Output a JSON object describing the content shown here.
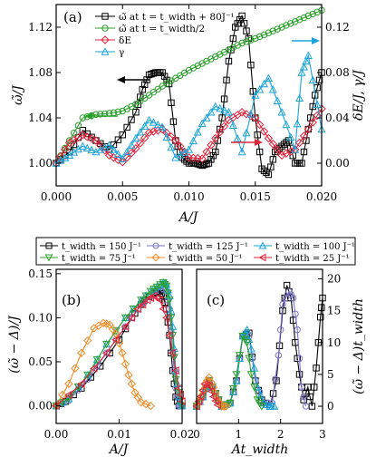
{
  "chart_data": [
    {
      "panel": "(a)",
      "type": "line",
      "xlabel": "A/J",
      "ylabel_left": "ω̃/J",
      "ylabel_right": "δE/J, γ/J",
      "xlim": [
        0,
        0.02
      ],
      "ylim_left": [
        0.98,
        1.14
      ],
      "ylim_right": [
        -0.02,
        0.14
      ],
      "x_ticks": [
        "0.000",
        "0.005",
        "0.010",
        "0.015",
        "0.020"
      ],
      "y_ticks_left": [
        "1.00",
        "1.04",
        "1.08",
        "1.12"
      ],
      "y_ticks_right": [
        "0.00",
        "0.04",
        "0.08",
        "0.12"
      ],
      "legend_position": "top-left",
      "series": [
        {
          "name": "ω̃ at t = t_width + 80J⁻¹",
          "color": "#000000",
          "marker": "square",
          "axis": "left",
          "x": [
            0,
            0.001,
            0.002,
            0.003,
            0.004,
            0.005,
            0.006,
            0.0065,
            0.007,
            0.0075,
            0.008,
            0.0085,
            0.009,
            0.0095,
            0.01,
            0.0105,
            0.011,
            0.0115,
            0.012,
            0.0125,
            0.013,
            0.0135,
            0.014,
            0.0145,
            0.015,
            0.0155,
            0.016,
            0.0165,
            0.017,
            0.0175,
            0.018,
            0.0185,
            0.019,
            0.0195,
            0.02
          ],
          "y": [
            1.0,
            1.01,
            1.029,
            1.02,
            1.012,
            1.025,
            1.045,
            1.065,
            1.078,
            1.08,
            1.08,
            1.07,
            1.02,
            1.005,
            1.0,
            1.0,
            0.998,
            1.0,
            1.01,
            1.04,
            1.09,
            1.12,
            1.13,
            1.11,
            1.04,
            0.995,
            0.99,
            1.01,
            1.015,
            1.02,
            1.0,
            1.0,
            1.03,
            1.06,
            1.08
          ]
        },
        {
          "name": "ω̃ at t = t_width/2",
          "color": "#2ca02c",
          "marker": "circle",
          "axis": "left",
          "x": [
            0,
            0.001,
            0.002,
            0.003,
            0.004,
            0.005,
            0.006,
            0.007,
            0.008,
            0.009,
            0.01,
            0.011,
            0.012,
            0.013,
            0.014,
            0.015,
            0.016,
            0.017,
            0.018,
            0.019,
            0.02
          ],
          "y": [
            1.0,
            1.02,
            1.04,
            1.043,
            1.044,
            1.046,
            1.052,
            1.06,
            1.068,
            1.075,
            1.082,
            1.088,
            1.094,
            1.1,
            1.106,
            1.11,
            1.115,
            1.12,
            1.125,
            1.13,
            1.135
          ]
        },
        {
          "name": "δE",
          "color": "#e0243c",
          "marker": "diamond",
          "axis": "right",
          "x": [
            0,
            0.001,
            0.002,
            0.003,
            0.004,
            0.005,
            0.006,
            0.007,
            0.008,
            0.009,
            0.01,
            0.011,
            0.012,
            0.013,
            0.014,
            0.015,
            0.016,
            0.017,
            0.018,
            0.019,
            0.02
          ],
          "y": [
            0.0,
            0.018,
            0.025,
            0.02,
            0.007,
            0.001,
            0.013,
            0.027,
            0.03,
            0.02,
            0.005,
            0.004,
            0.022,
            0.038,
            0.045,
            0.04,
            0.022,
            0.007,
            0.012,
            0.03,
            0.048
          ]
        },
        {
          "name": "γ",
          "color": "#1aa3d9",
          "marker": "triangle",
          "axis": "right",
          "x": [
            0,
            0.001,
            0.002,
            0.003,
            0.004,
            0.005,
            0.006,
            0.007,
            0.008,
            0.009,
            0.01,
            0.011,
            0.012,
            0.013,
            0.014,
            0.015,
            0.016,
            0.017,
            0.018,
            0.0185,
            0.019,
            0.02
          ],
          "y": [
            0.0,
            0.007,
            0.015,
            0.01,
            0.016,
            0.004,
            0.022,
            0.038,
            0.032,
            0.005,
            0.012,
            0.035,
            0.05,
            0.045,
            0.01,
            0.06,
            0.075,
            0.045,
            0.012,
            0.08,
            0.095,
            0.03
          ]
        }
      ],
      "annotations": [
        "(a)"
      ]
    },
    {
      "legend": [
        {
          "name": "t_width = 150 J⁻¹",
          "color": "#000000",
          "marker": "square"
        },
        {
          "name": "t_width = 125 J⁻¹",
          "color": "#7b73c9",
          "marker": "circle"
        },
        {
          "name": "t_width = 100 J⁻¹",
          "color": "#1aa3d9",
          "marker": "triangle"
        },
        {
          "name": "t_width =   75 J⁻¹",
          "color": "#2ca02c",
          "marker": "tri-down"
        },
        {
          "name": "t_width =   50 J⁻¹",
          "color": "#f08a24",
          "marker": "diamond"
        },
        {
          "name": "t_width =   25 J⁻¹",
          "color": "#e0243c",
          "marker": "tri-left"
        }
      ]
    },
    {
      "panel": "(b)",
      "type": "line",
      "xlabel": "A/J",
      "ylabel": "(ω̃ − Δ)/J",
      "xlim": [
        0,
        0.02
      ],
      "ylim": [
        -0.02,
        0.155
      ],
      "x_ticks": [
        "0.00",
        "0.01",
        "0.02"
      ],
      "y_ticks": [
        "0.00",
        "0.05",
        "0.10",
        "0.15"
      ],
      "series": [
        {
          "name": "150",
          "x": [
            0.0,
            0.0015,
            0.004,
            0.007,
            0.01,
            0.012,
            0.013,
            0.014,
            0.0155,
            0.0165,
            0.017,
            0.0175,
            0.018,
            0.0185,
            0.019,
            0.0195,
            0.02
          ],
          "y": [
            0.0,
            0.005,
            0.02,
            0.045,
            0.075,
            0.1,
            0.11,
            0.12,
            0.128,
            0.13,
            0.125,
            0.11,
            0.08,
            0.04,
            0.01,
            0.0,
            0.0
          ]
        },
        {
          "name": "125",
          "x": [
            0.0,
            0.002,
            0.005,
            0.008,
            0.011,
            0.013,
            0.015,
            0.0165,
            0.0175,
            0.018,
            0.0185,
            0.019,
            0.0195,
            0.02
          ],
          "y": [
            0.0,
            0.006,
            0.03,
            0.06,
            0.09,
            0.11,
            0.125,
            0.135,
            0.13,
            0.11,
            0.06,
            0.02,
            0.0,
            0.0
          ]
        },
        {
          "name": "100",
          "x": [
            0.0,
            0.002,
            0.005,
            0.008,
            0.011,
            0.0135,
            0.015,
            0.016,
            0.017,
            0.0175,
            0.018,
            0.0185,
            0.019,
            0.0195,
            0.02
          ],
          "y": [
            0.0,
            0.008,
            0.035,
            0.07,
            0.1,
            0.12,
            0.13,
            0.135,
            0.14,
            0.138,
            0.125,
            0.09,
            0.04,
            0.01,
            0.0
          ]
        },
        {
          "name": "75",
          "x": [
            0.0,
            0.002,
            0.005,
            0.008,
            0.011,
            0.0135,
            0.015,
            0.016,
            0.017,
            0.0175,
            0.018,
            0.0185,
            0.019,
            0.02
          ],
          "y": [
            0.0,
            0.008,
            0.035,
            0.07,
            0.1,
            0.12,
            0.13,
            0.135,
            0.14,
            0.136,
            0.12,
            0.08,
            0.03,
            0.0
          ]
        },
        {
          "name": "50",
          "x": [
            0.0,
            0.002,
            0.004,
            0.006,
            0.0075,
            0.0085,
            0.0095,
            0.0105,
            0.0115,
            0.0125,
            0.0135,
            0.015
          ],
          "y": [
            0.0,
            0.025,
            0.06,
            0.088,
            0.094,
            0.092,
            0.082,
            0.06,
            0.035,
            0.015,
            0.004,
            0.0
          ]
        },
        {
          "name": "25",
          "x": [
            0.0,
            0.004,
            0.008,
            0.011,
            0.013,
            0.0145,
            0.0155,
            0.0165,
            0.0175,
            0.0185,
            0.0195,
            0.02
          ],
          "y": [
            0.0,
            0.025,
            0.06,
            0.09,
            0.11,
            0.12,
            0.125,
            0.12,
            0.1,
            0.06,
            0.02,
            0.005
          ]
        }
      ],
      "annotations": [
        "(b)"
      ]
    },
    {
      "panel": "(c)",
      "type": "line",
      "xlabel": "At_width",
      "ylabel_right": "(ω̃ − Δ)t_width",
      "xlim": [
        0,
        3
      ],
      "ylim": [
        -2.7,
        21.5
      ],
      "x_ticks": [
        "0",
        "1",
        "2",
        "3"
      ],
      "y_ticks": [
        "0",
        "5",
        "10",
        "15",
        "20"
      ],
      "series": [
        {
          "name": "150",
          "x": [
            0.0,
            0.15,
            0.3,
            0.45,
            0.6,
            0.8,
            0.95,
            1.1,
            1.25,
            1.4,
            1.55,
            1.75,
            1.9,
            2.05,
            2.15,
            2.25,
            2.35,
            2.45,
            2.55,
            2.65,
            2.75,
            2.85,
            2.95,
            3.0
          ],
          "y": [
            0,
            1.5,
            4,
            2,
            0,
            0.5,
            4,
            11,
            11.5,
            4,
            1,
            0,
            4,
            15,
            19,
            17,
            10,
            5,
            1,
            3,
            0,
            6,
            14,
            17
          ]
        },
        {
          "name": "125",
          "x": [
            0.0,
            0.15,
            0.3,
            0.45,
            0.6,
            0.8,
            0.95,
            1.1,
            1.25,
            1.4,
            1.6,
            1.8,
            1.95,
            2.05,
            2.2,
            2.3,
            2.4,
            2.5,
            2.6
          ],
          "y": [
            0,
            1.5,
            4,
            2,
            0,
            0.5,
            4,
            11,
            11,
            4,
            0.5,
            0.5,
            8,
            16,
            18,
            17,
            12,
            3,
            0
          ]
        },
        {
          "name": "100",
          "x": [
            0.0,
            0.15,
            0.3,
            0.45,
            0.6,
            0.8,
            0.95,
            1.1,
            1.2,
            1.3,
            1.45,
            1.6,
            1.75,
            1.85
          ],
          "y": [
            0,
            1.5,
            4,
            2,
            0,
            0.5,
            4,
            11,
            12,
            9,
            3,
            0.5,
            0,
            0
          ]
        },
        {
          "name": "75",
          "x": [
            0.0,
            0.15,
            0.3,
            0.45,
            0.6,
            0.8,
            0.95,
            1.1,
            1.2,
            1.3,
            1.45,
            1.55
          ],
          "y": [
            0,
            1.5,
            4,
            2,
            0,
            0.5,
            5,
            11,
            10,
            5,
            1,
            0
          ]
        },
        {
          "name": "50",
          "x": [
            0.0,
            0.1,
            0.2,
            0.3,
            0.4,
            0.5,
            0.6,
            0.7
          ],
          "y": [
            0,
            1.5,
            3.5,
            4.5,
            3,
            1,
            0,
            0
          ]
        },
        {
          "name": "25",
          "x": [
            0.0,
            0.1,
            0.2,
            0.3,
            0.4,
            0.5
          ],
          "y": [
            0,
            1.5,
            3.5,
            3.2,
            1.5,
            0.2
          ]
        }
      ],
      "annotations": [
        "(c)"
      ]
    }
  ]
}
